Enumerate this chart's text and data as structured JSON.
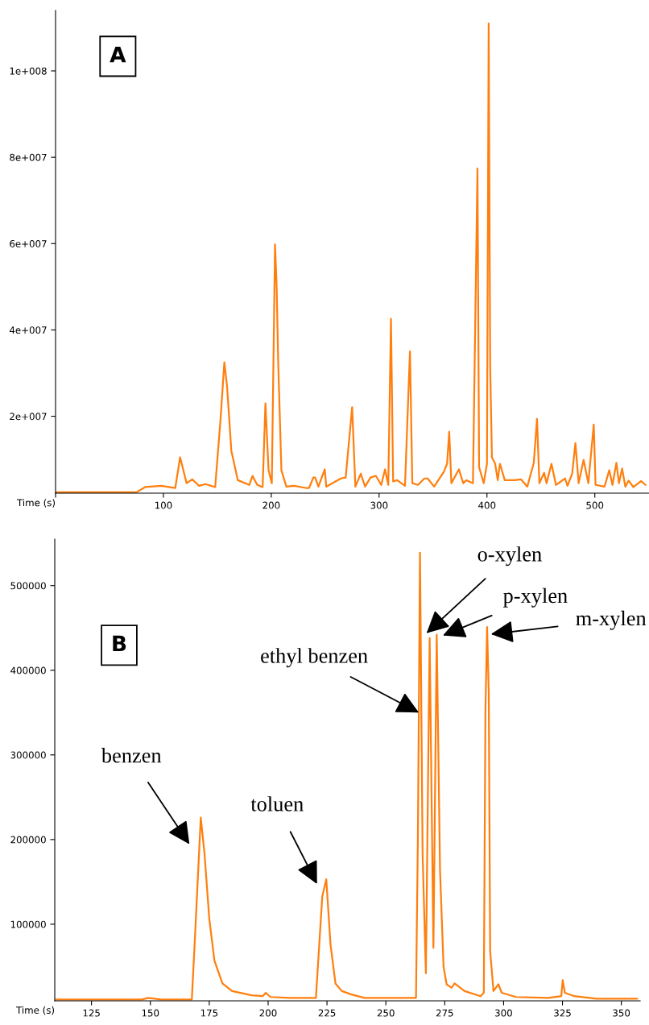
{
  "chart_data": [
    {
      "type": "line",
      "xlabel": "Time (s)",
      "annotations": [
        "A"
      ],
      "xlim": [
        0,
        550
      ],
      "ylim": [
        2200000,
        114000000
      ],
      "xticks": [
        {
          "value": 0,
          "label": null
        },
        100,
        200,
        300,
        400,
        500
      ],
      "yticks": [
        {
          "value": 20000000,
          "label": "2e+007"
        },
        {
          "value": 40000000,
          "label": "4e+007"
        },
        {
          "value": 60000000,
          "label": "6e+007"
        },
        {
          "value": 80000000,
          "label": "8e+007"
        },
        {
          "value": 100000000,
          "label": "1e+008"
        }
      ],
      "series": [
        {
          "color": "#ff7f0e",
          "x": [
            0,
            75,
            83,
            98,
            111,
            115.5,
            121.5,
            126.7,
            133,
            139,
            148,
            153,
            156.5,
            159,
            163,
            169,
            179.6,
            182.6,
            187,
            192,
            194.6,
            197.5,
            200.5,
            203.5,
            205,
            206.4,
            209.4,
            214,
            221,
            232,
            235,
            239,
            240.7,
            243.7,
            249.6,
            251,
            264.5,
            269,
            275,
            278,
            283,
            287,
            292,
            297,
            302,
            305.5,
            308.5,
            311,
            313,
            316.7,
            324,
            328.6,
            330.8,
            336,
            342,
            345,
            351,
            360,
            363,
            365,
            367,
            374,
            378,
            381,
            387,
            391.2,
            392.7,
            397,
            400,
            401.6,
            403,
            404.6,
            407.6,
            410,
            412,
            416.5,
            425.5,
            431.5,
            437.4,
            443.4,
            446.4,
            448.6,
            453,
            455.3,
            459.8,
            464,
            472.4,
            474.7,
            479,
            482,
            485,
            489.6,
            494,
            499,
            500.7,
            509,
            513.4,
            516.4,
            520,
            522.4,
            525.3,
            528.3,
            531.3,
            535.8,
            543,
            547
          ],
          "values": [
            2400000,
            2400000,
            3600000,
            3900000,
            3400000,
            10500000,
            4500000,
            5400000,
            3900000,
            4300000,
            3600000,
            19400000,
            32500000,
            27000000,
            12000000,
            5200000,
            4100000,
            6200000,
            4100000,
            3600000,
            23000000,
            7500000,
            4500000,
            59800000,
            50000000,
            33000000,
            7500000,
            3700000,
            3900000,
            3400000,
            3400000,
            5800000,
            5800000,
            3700000,
            7700000,
            3700000,
            5600000,
            5800000,
            22100000,
            3700000,
            6700000,
            3700000,
            5800000,
            6200000,
            4100000,
            7700000,
            4100000,
            42600000,
            4900000,
            5200000,
            3900000,
            35000000,
            4500000,
            4100000,
            5600000,
            5600000,
            3700000,
            7100000,
            9000000,
            16400000,
            4500000,
            7700000,
            4500000,
            5200000,
            4500000,
            77400000,
            8200000,
            4500000,
            9000000,
            111000000,
            31400000,
            10500000,
            9000000,
            5200000,
            9000000,
            5200000,
            5200000,
            5400000,
            3700000,
            9200000,
            19400000,
            4500000,
            6900000,
            4500000,
            9000000,
            4100000,
            5600000,
            3900000,
            6700000,
            13800000,
            4500000,
            9900000,
            4500000,
            18100000,
            4100000,
            3700000,
            7500000,
            4100000,
            9200000,
            4500000,
            7900000,
            3700000,
            5100000,
            3600000,
            5000000,
            4100000
          ]
        }
      ]
    },
    {
      "type": "line",
      "xlabel": "Time (s)",
      "annotations": [
        "B",
        "benzen",
        "toluen",
        {
          "text": "ethyl benzen",
          "x": 264,
          "y": 350000
        },
        "o-xylen",
        "p-xylen",
        "m-xylen"
      ],
      "xlim": [
        109.4,
        358
      ],
      "ylim": [
        9500,
        555000
      ],
      "xticks": [
        125,
        150,
        175,
        200,
        225,
        250,
        275,
        300,
        325,
        350
      ],
      "yticks": [
        100000,
        200000,
        300000,
        400000,
        500000
      ],
      "series": [
        {
          "color": "#ff7f0e",
          "x": [
            110,
            146.4,
            149,
            154.6,
            167.6,
            169,
            171.4,
            173,
            175,
            177.2,
            180.6,
            184.7,
            193,
            197.7,
            199,
            201,
            209.4,
            220.3,
            223,
            224.7,
            226.5,
            228.6,
            231.3,
            235.4,
            240.9,
            262.8,
            263.6,
            264.5,
            265.6,
            267,
            268.6,
            270.2,
            271.6,
            273,
            274.5,
            275.8,
            276.8,
            277.9,
            279.2,
            283.4,
            290.2,
            291.6,
            292.3,
            293,
            293.7,
            294.3,
            295.7,
            297.8,
            299.2,
            305.3,
            319,
            324.5,
            325.1,
            326,
            330,
            339.5,
            356.7
          ],
          "values": [
            11000,
            11000,
            13000,
            11000,
            11000,
            88000,
            226000,
            183000,
            107000,
            57000,
            30000,
            21000,
            16000,
            15000,
            19000,
            14000,
            13000,
            13000,
            133000,
            153000,
            76000,
            30000,
            21000,
            17000,
            13000,
            13000,
            202000,
            539000,
            183000,
            42000,
            438000,
            72000,
            442000,
            164000,
            50000,
            29000,
            27000,
            25000,
            30000,
            21000,
            15000,
            19000,
            354000,
            451000,
            373000,
            68000,
            21000,
            29000,
            19000,
            14000,
            13000,
            15000,
            34000,
            19000,
            15000,
            12000,
            12000
          ]
        }
      ]
    }
  ]
}
